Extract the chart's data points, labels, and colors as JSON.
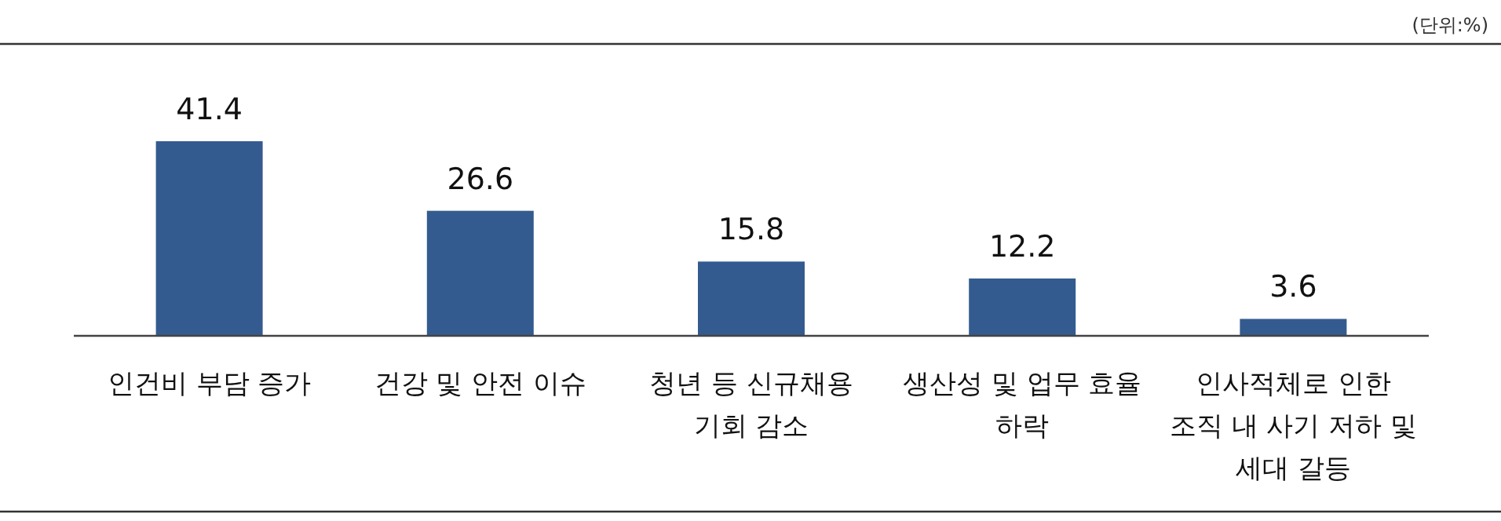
{
  "chart_data": {
    "type": "bar",
    "categories": [
      "인건비 부담 증가",
      "건강 및 안전 이슈",
      "청년 등 신규채용 기회 감소",
      "생산성 및 업무 효율 하락",
      "인사적체로 인한 조직 내 사기 저하 및 세대 갈등"
    ],
    "values": [
      41.4,
      26.6,
      15.8,
      12.2,
      3.6
    ],
    "color": "#345b8f",
    "data_labels": true,
    "annotations": [
      "(단위:%)"
    ]
  }
}
